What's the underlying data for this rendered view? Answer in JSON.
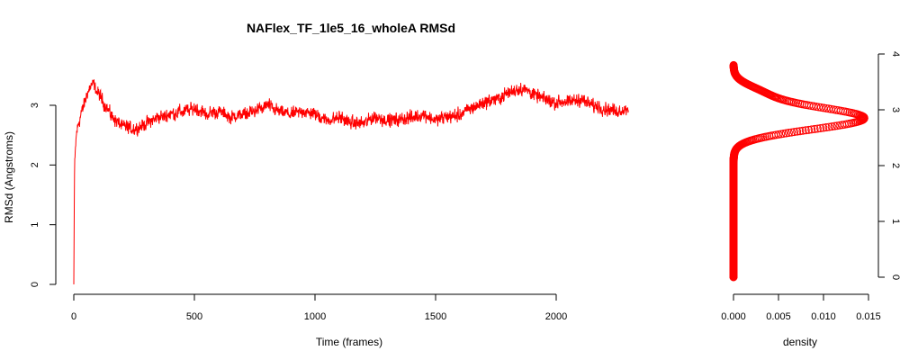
{
  "chart_data": [
    {
      "type": "line",
      "title": "NAFlex_TF_1le5_16_wholeA RMSd",
      "xlabel": "Time (frames)",
      "ylabel": "RMSd (Angstroms)",
      "xlim": [
        0,
        2300
      ],
      "ylim": [
        0,
        3.8
      ],
      "xticks": [
        0,
        500,
        1000,
        1500,
        2000
      ],
      "xtick_labels": [
        "0",
        "500",
        "1000",
        "1500",
        "2000"
      ],
      "yticks": [
        0,
        1,
        2,
        3
      ],
      "ytick_labels": [
        "0",
        "1",
        "2",
        "3"
      ],
      "grid": false,
      "legend": "none",
      "color": "#ff0000",
      "frames": 2300,
      "trend": [
        [
          0,
          0.0
        ],
        [
          3,
          2.0
        ],
        [
          10,
          2.5
        ],
        [
          20,
          2.7
        ],
        [
          40,
          3.0
        ],
        [
          60,
          3.25
        ],
        [
          80,
          3.35
        ],
        [
          100,
          3.2
        ],
        [
          130,
          3.0
        ],
        [
          160,
          2.8
        ],
        [
          200,
          2.65
        ],
        [
          250,
          2.6
        ],
        [
          300,
          2.7
        ],
        [
          350,
          2.8
        ],
        [
          400,
          2.85
        ],
        [
          450,
          2.9
        ],
        [
          500,
          2.95
        ],
        [
          550,
          2.85
        ],
        [
          600,
          2.9
        ],
        [
          650,
          2.8
        ],
        [
          700,
          2.85
        ],
        [
          750,
          2.9
        ],
        [
          800,
          3.0
        ],
        [
          850,
          2.9
        ],
        [
          900,
          2.85
        ],
        [
          950,
          2.9
        ],
        [
          1000,
          2.85
        ],
        [
          1050,
          2.75
        ],
        [
          1100,
          2.8
        ],
        [
          1150,
          2.7
        ],
        [
          1200,
          2.7
        ],
        [
          1250,
          2.8
        ],
        [
          1300,
          2.75
        ],
        [
          1350,
          2.75
        ],
        [
          1400,
          2.8
        ],
        [
          1450,
          2.85
        ],
        [
          1500,
          2.75
        ],
        [
          1550,
          2.8
        ],
        [
          1600,
          2.85
        ],
        [
          1650,
          2.95
        ],
        [
          1700,
          3.05
        ],
        [
          1750,
          3.1
        ],
        [
          1800,
          3.2
        ],
        [
          1850,
          3.3
        ],
        [
          1900,
          3.2
        ],
        [
          1950,
          3.1
        ],
        [
          2000,
          3.05
        ],
        [
          2050,
          3.05
        ],
        [
          2100,
          3.1
        ],
        [
          2150,
          3.0
        ],
        [
          2200,
          2.95
        ],
        [
          2250,
          2.9
        ],
        [
          2300,
          2.95
        ]
      ]
    },
    {
      "type": "scatter",
      "xlabel": "density",
      "ylabel": "",
      "xlim": [
        0,
        0.015
      ],
      "ylim": [
        0,
        3.8
      ],
      "xticks": [
        0,
        0.005,
        0.01,
        0.015
      ],
      "xtick_labels": [
        "0.000",
        "0.005",
        "0.010",
        "0.015"
      ],
      "yticks": [
        0,
        1,
        2,
        3,
        4
      ],
      "ytick_labels": [
        "0",
        "1",
        "2",
        "3",
        "4"
      ],
      "y_axis_side": "right",
      "grid": false,
      "legend": "none",
      "color": "#ff0000",
      "density_peak": {
        "center": 2.85,
        "sigma": 0.2,
        "max": 0.0145
      },
      "density_shoulder": {
        "center": 3.3,
        "sigma": 0.15,
        "max": 0.0025
      },
      "y_range_points": [
        0,
        3.8
      ]
    }
  ]
}
